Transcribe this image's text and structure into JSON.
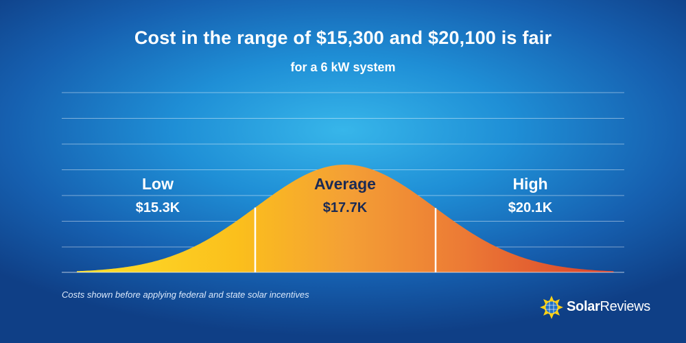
{
  "header": {
    "title": "Cost in the range of $15,300 and $20,100 is fair",
    "subtitle": "for a 6 kW system"
  },
  "chart_data": {
    "type": "area",
    "shape": "bell curve",
    "segments": [
      {
        "label": "Low",
        "value": "$15.3K",
        "color": "#fcc419"
      },
      {
        "label": "Average",
        "value": "$17.7K",
        "color": "#f39a34"
      },
      {
        "label": "High",
        "value": "$20.1K",
        "color": "#e0512d"
      }
    ],
    "grid": true
  },
  "footnote": "Costs shown before applying federal and state solar incentives",
  "logo": {
    "part1": "Solar",
    "part2": "Reviews"
  },
  "colors": {
    "background": "#1f8fd6",
    "curve_start": "#fcd116",
    "curve_mid": "#f6a23a",
    "curve_end": "#dd4a2e",
    "label_dark": "#1a2a55"
  }
}
